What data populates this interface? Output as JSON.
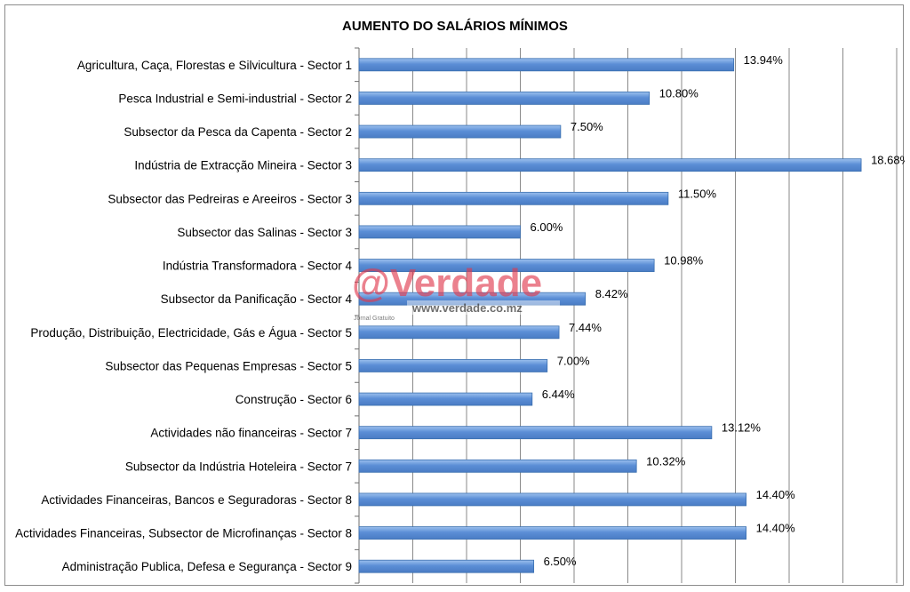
{
  "chart_data": {
    "type": "bar",
    "orientation": "horizontal",
    "title": "AUMENTO DO SALÁRIOS MÍNIMOS",
    "xlabel": "",
    "ylabel": "",
    "xlim": [
      0,
      20
    ],
    "grid": "vertical",
    "legend": "none",
    "bar_color": "#5b8ed6",
    "categories": [
      "Agricultura, Caça, Florestas e Silvicultura - Sector 1",
      "Pesca Industrial e Semi-industrial - Sector 2",
      "Subsector da Pesca da Capenta - Sector 2",
      "Indústria de Extracção Mineira - Sector 3",
      "Subsector das Pedreiras e Areeiros - Sector 3",
      "Subsector das Salinas - Sector 3",
      "Indústria Transformadora - Sector 4",
      "Subsector da Panificação - Sector 4",
      "Produção, Distribuição, Electricidade, Gás e Água - Sector 5",
      "Subsector das Pequenas Empresas - Sector 5",
      "Construção - Sector 6",
      "Actividades não financeiras - Sector 7",
      "Subsector da Indústria Hoteleira - Sector 7",
      "Actividades Financeiras, Bancos e Seguradoras - Sector 8",
      "Actividades Financeiras, Subsector de Microfinanças - Sector 8",
      "Administração Publica, Defesa e Segurança - Sector 9"
    ],
    "values": [
      13.94,
      10.8,
      7.5,
      18.68,
      11.5,
      6.0,
      10.98,
      8.42,
      7.44,
      7.0,
      6.44,
      13.12,
      10.32,
      14.4,
      14.4,
      6.5
    ],
    "data_labels": [
      "13.94%",
      "10.80%",
      "7.50%",
      "18.68%",
      "11.50%",
      "6.00%",
      "10.98%",
      "8.42%",
      "7.44%",
      "7.00%",
      "6.44%",
      "13.12%",
      "10.32%",
      "14.40%",
      "14.40%",
      "6.50%"
    ]
  },
  "watermark": {
    "logo_text": "@Verdade",
    "url": "www.verdade.co.mz",
    "tagline": "Jornal Gratuito",
    "colors": {
      "logo": "#e03a4e",
      "url": "#555555"
    }
  }
}
